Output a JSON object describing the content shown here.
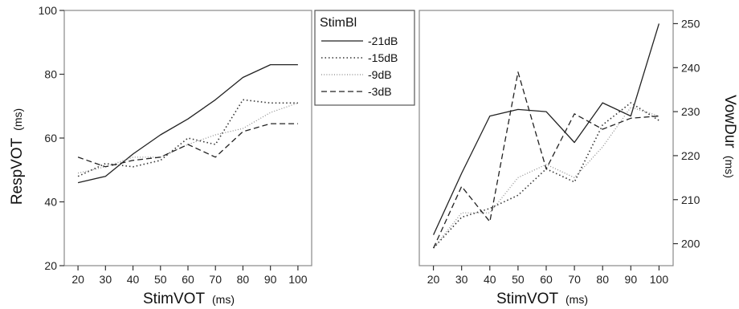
{
  "chart_data": [
    {
      "type": "line",
      "panel": "left",
      "xlabel": "StimVOT",
      "xlabel_unit": "(ms)",
      "ylabel": "RespVOT",
      "ylabel_unit": "(ms)",
      "x": [
        20,
        30,
        40,
        50,
        60,
        70,
        80,
        90,
        100
      ],
      "xlim": [
        15,
        105
      ],
      "ylim": [
        20,
        100
      ],
      "y_ticks": [
        20,
        40,
        60,
        80,
        100
      ],
      "grid": false,
      "series": [
        {
          "name": "-21dB",
          "style": "solid",
          "values": [
            46,
            48,
            55,
            61,
            66,
            72,
            79,
            83,
            83
          ]
        },
        {
          "name": "-15dB",
          "style": "dotted",
          "values": [
            48,
            52,
            51,
            53,
            60,
            58,
            72,
            71,
            71
          ]
        },
        {
          "name": "-9dB",
          "style": "finedot",
          "values": [
            49,
            51,
            54,
            54,
            58,
            61,
            63,
            68,
            71
          ]
        },
        {
          "name": "-3dB",
          "style": "dashed",
          "values": [
            54,
            51,
            53,
            54,
            58,
            54,
            62,
            64.5,
            64.5
          ]
        }
      ]
    },
    {
      "type": "line",
      "panel": "right",
      "xlabel": "StimVOT",
      "xlabel_unit": "(ms)",
      "ylabel": "VowDur",
      "ylabel_unit": "(ms)",
      "x": [
        20,
        30,
        40,
        50,
        60,
        70,
        80,
        90,
        100
      ],
      "xlim": [
        15,
        105
      ],
      "ylim": [
        195,
        253
      ],
      "y_ticks": [
        200,
        210,
        220,
        230,
        240,
        250
      ],
      "grid": false,
      "series": [
        {
          "name": "-21dB",
          "style": "solid",
          "values": [
            202,
            216,
            229,
            230.5,
            230,
            223,
            232,
            229,
            250
          ]
        },
        {
          "name": "-15dB",
          "style": "dotted",
          "values": [
            199,
            206,
            208,
            211,
            217,
            214,
            227,
            232,
            228
          ]
        },
        {
          "name": "-9dB",
          "style": "finedot",
          "values": [
            199,
            207,
            207,
            215,
            218,
            215,
            222,
            231,
            229
          ]
        },
        {
          "name": "-3dB",
          "style": "dashed",
          "values": [
            199,
            213,
            205,
            239,
            217,
            229.5,
            226,
            228.5,
            229
          ]
        }
      ]
    }
  ],
  "legend": {
    "title": "StimBl",
    "position": "top-center",
    "entries": [
      "-21dB",
      "-15dB",
      "-9dB",
      "-3dB"
    ]
  }
}
